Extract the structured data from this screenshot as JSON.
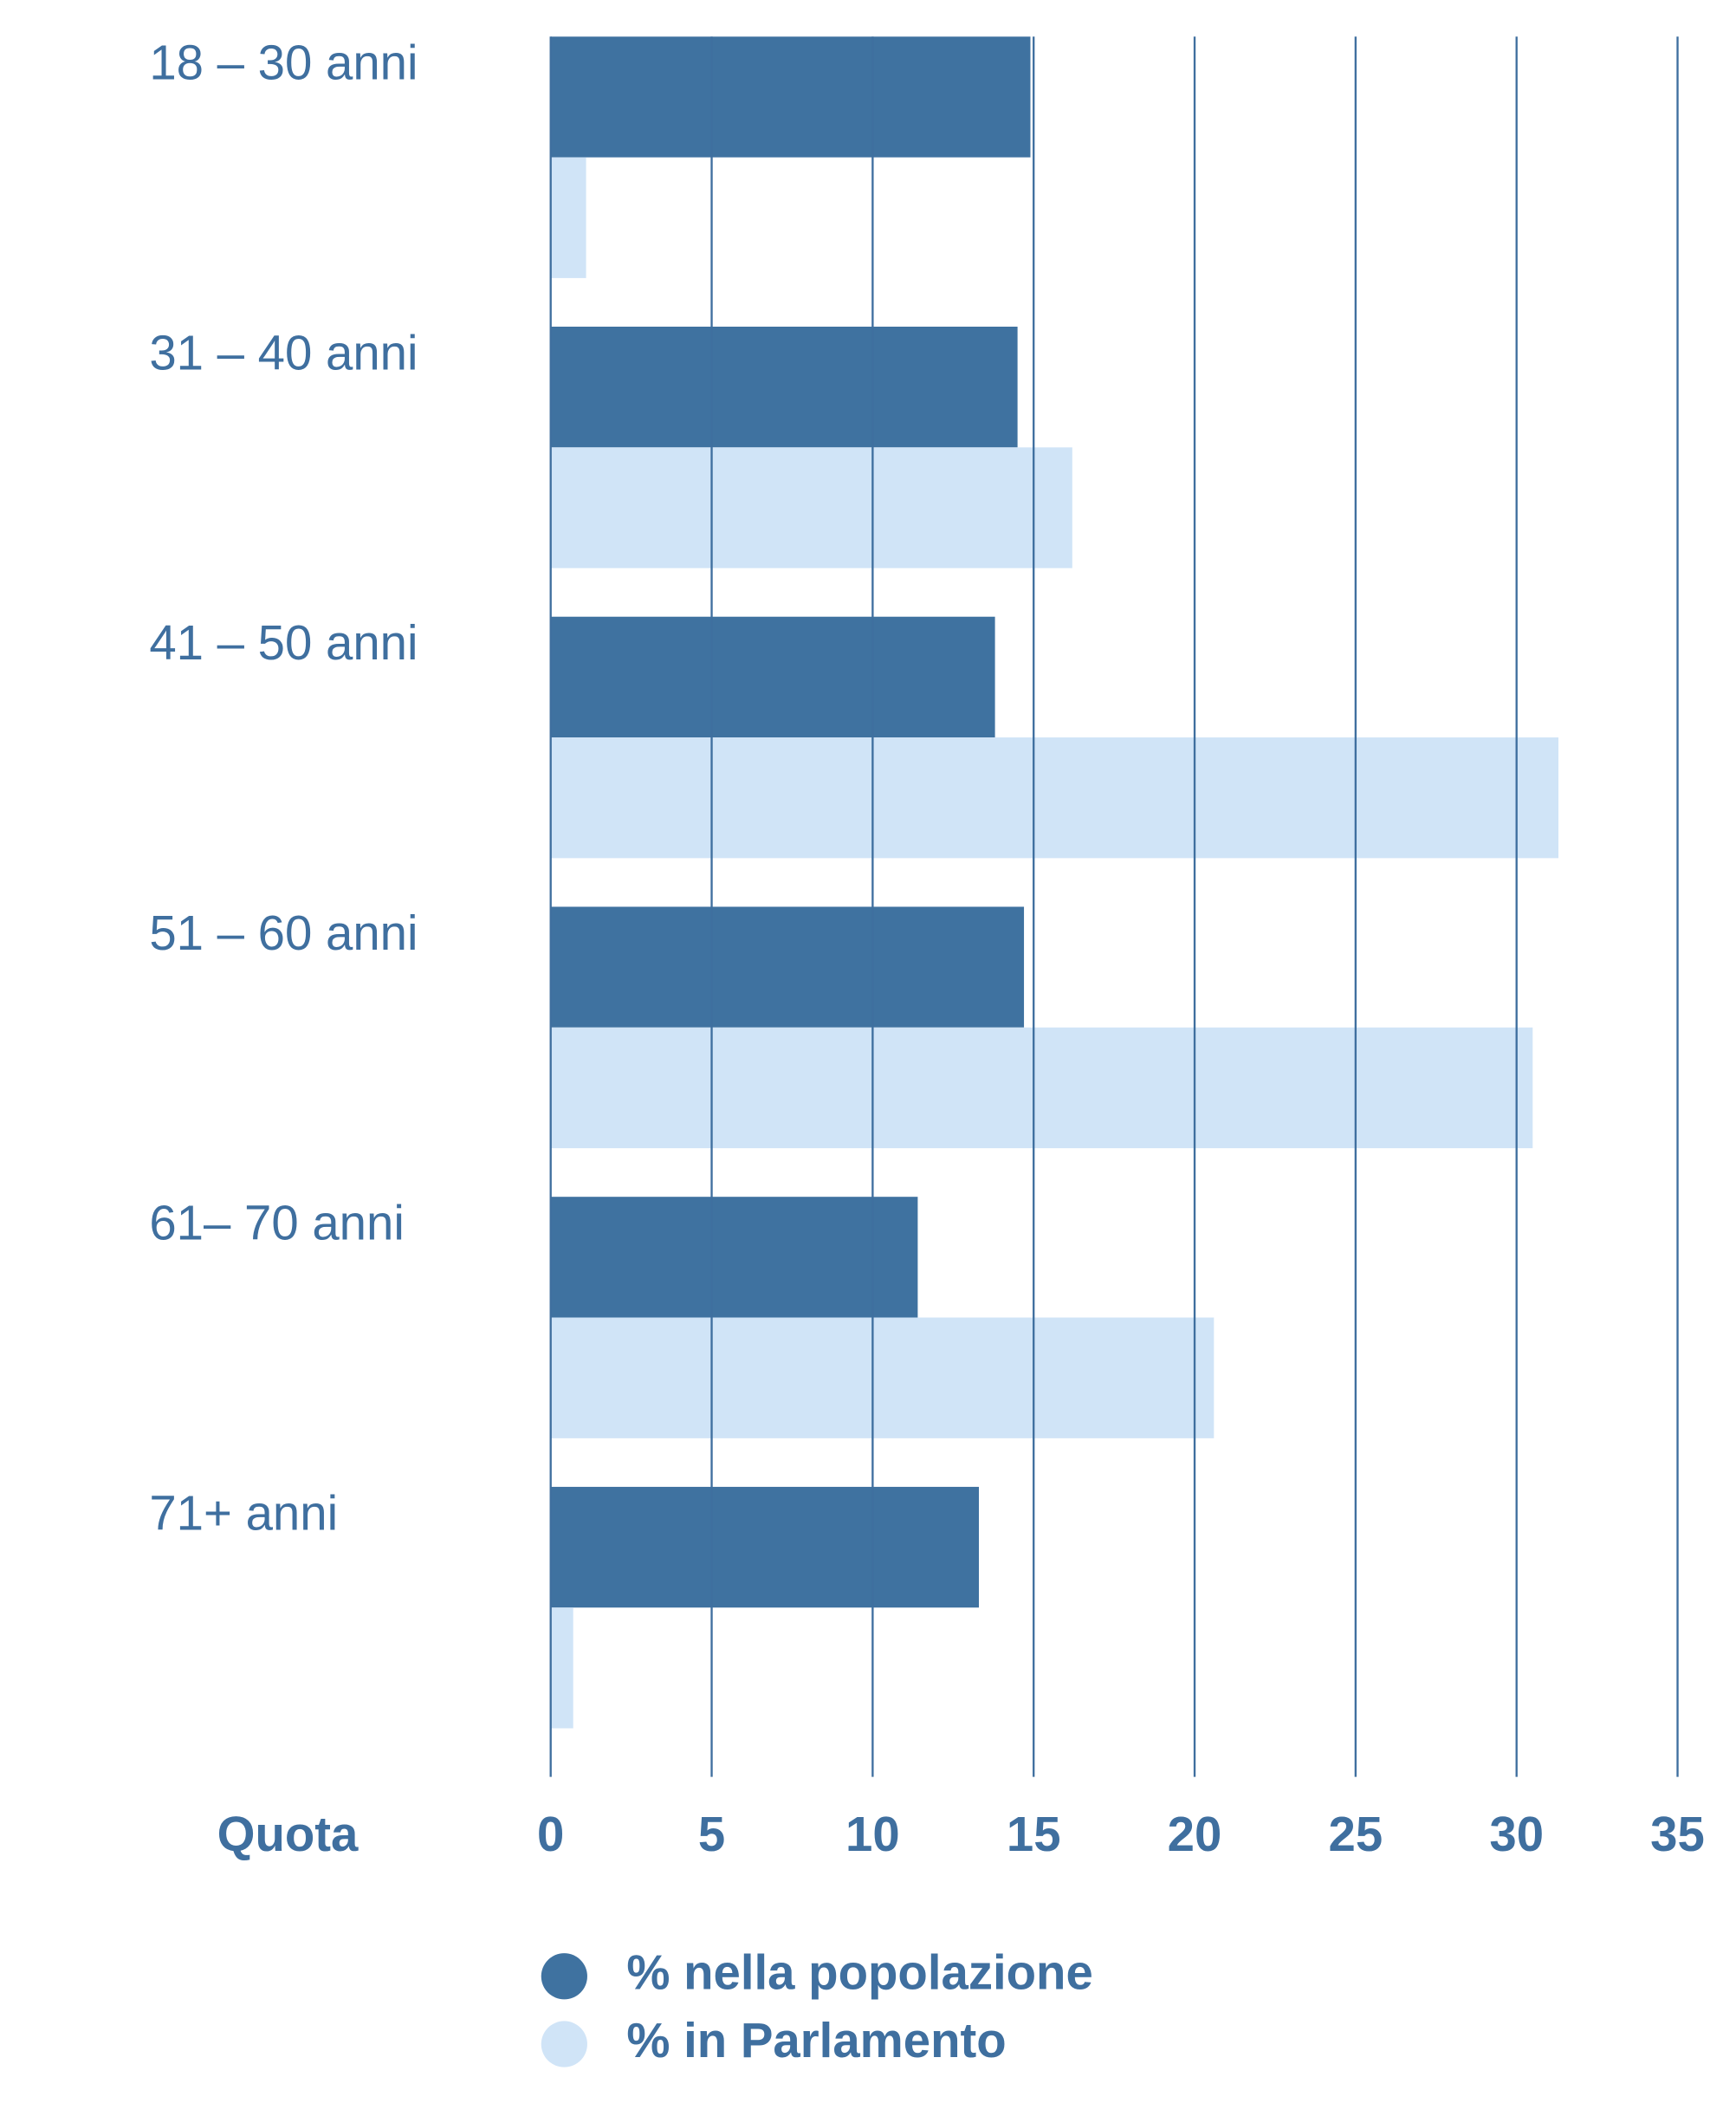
{
  "chart_data": {
    "type": "hbar",
    "x_label": "Quota",
    "categories": [
      "18 – 30 anni",
      "31 – 40 anni",
      "41 – 50 anni",
      "51 – 60 anni",
      "61– 70 anni",
      "71+ anni"
    ],
    "series": [
      {
        "name": "% nella popolazione",
        "color": "#3f72a0",
        "values": [
          14.9,
          14.5,
          13.8,
          14.7,
          11.4,
          13.3
        ]
      },
      {
        "name": "% in Parlamento",
        "color": "#d0e4f7",
        "values": [
          1.1,
          16.2,
          31.3,
          30.5,
          20.6,
          0.7
        ]
      }
    ],
    "xlim": [
      0,
      35
    ],
    "xticks": [
      0,
      5,
      10,
      15,
      20,
      25,
      30,
      35
    ],
    "grid": true
  }
}
